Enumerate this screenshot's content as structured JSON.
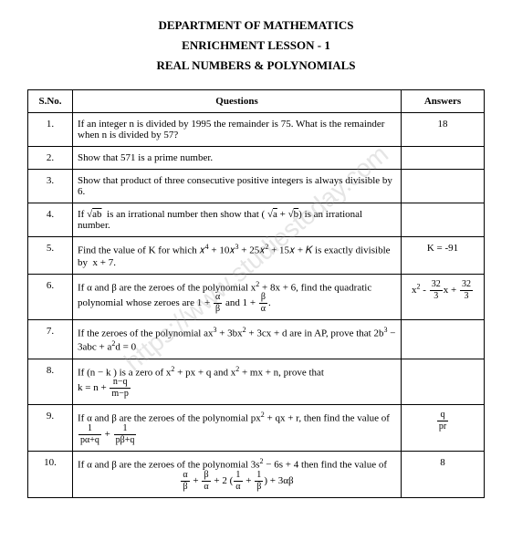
{
  "header": {
    "dept": "DEPARTMENT OF MATHEMATICS",
    "lesson": "ENRICHMENT LESSON - 1",
    "topic": "REAL NUMBERS & POLYNOMIALS"
  },
  "watermark": "https://www.studiestoday.com",
  "table": {
    "columns": {
      "sno": "S.No.",
      "q": "Questions",
      "ans": "Answers"
    },
    "rows": [
      {
        "sno": "1.",
        "q": "If an integer n is divided by 1995 the remainder is 75. What is the remainder when n is divided by 57?",
        "ans": "18"
      },
      {
        "sno": "2.",
        "q": "Show that 571 is a prime number.",
        "ans": ""
      },
      {
        "sno": "3.",
        "q": "Show that product of three consecutive positive integers is always divisible by 6.",
        "ans": ""
      },
      {
        "sno": "4.",
        "q_html": "If √<span style='text-decoration:overline'>ab</span> &nbsp;is an irrational number then show that ( √<span style='text-decoration:overline'>a</span> + √<span style='text-decoration:overline'>b</span>) is an irrational number.",
        "ans": ""
      },
      {
        "sno": "5.",
        "q_html": "Find the value of K for which 𝑥<sup>4</sup> + 10𝑥<sup>3</sup> + 25𝑥<sup>2</sup> + 15𝑥 + 𝐾 is exactly divisible by &nbsp;x + 7.",
        "ans": "K = -91"
      },
      {
        "sno": "6.",
        "q_html": "If α and β are the zeroes of the polynomial x<sup>2</sup> + 8x + 6, find the quadratic polynomial whose zeroes are 1 + <span class='frac'><span class='num'>α</span><span class='den'>β</span></span> and 1 + <span class='frac'><span class='num'>β</span><span class='den'>α</span></span>.",
        "ans_html": "x<sup>2</sup> - <span class='frac'><span class='num'>32</span><span class='den'>3</span></span>x + <span class='frac'><span class='num'>32</span><span class='den'>3</span></span>"
      },
      {
        "sno": "7.",
        "q_html": "If the zeroes of the polynomial ax<sup>3</sup> + 3bx<sup>2</sup> + 3cx + d are in AP, prove that 2b<sup>3</sup> − 3abc + a<sup>2</sup>d = 0",
        "ans": ""
      },
      {
        "sno": "8.",
        "q_html": "If (n − k ) is a zero of x<sup>2</sup> + px + q and x<sup>2</sup> + mx + n, prove that<br>k = n + <span class='frac'><span class='num'>n−q</span><span class='den'>m−p</span></span>",
        "ans": ""
      },
      {
        "sno": "9.",
        "q_html": "If α and β are the zeroes of the polynomial px<sup>2</sup> + qx + r, then find the value of <span class='frac'><span class='num'>1</span><span class='den'>pα+q</span></span> + <span class='frac'><span class='num'>1</span><span class='den'>pβ+q</span></span>",
        "ans_html": "<span class='frac'><span class='num'>q</span><span class='den'>pr</span></span>"
      },
      {
        "sno": "10.",
        "q_html": "If α and β are the zeroes of the polynomial 3s<sup>2</sup> − 6s + 4 then find the value of<br><div style='text-align:center'><span class='frac'><span class='num'>α</span><span class='den'>β</span></span> + <span class='frac'><span class='num'>β</span><span class='den'>α</span></span> + 2 (<span class='frac'><span class='num'>1</span><span class='den'>α</span></span> + <span class='frac'><span class='num'>1</span><span class='den'>β</span></span>) + 3αβ</div>",
        "ans": "8"
      }
    ]
  }
}
